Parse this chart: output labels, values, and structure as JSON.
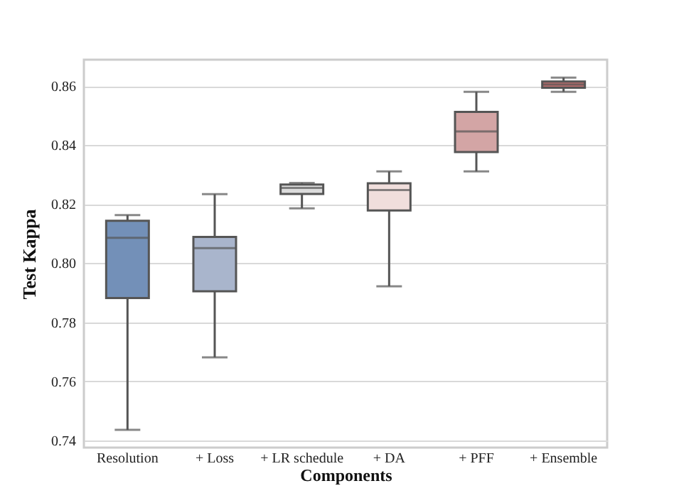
{
  "chart_data": {
    "type": "box",
    "xlabel": "Components",
    "ylabel": "Test Kappa",
    "categories": [
      "Resolution",
      "+ Loss",
      "+ LR schedule",
      "+ DA",
      "+ PFF",
      "+ Ensemble"
    ],
    "colors": [
      "#7390b8",
      "#a9b5cc",
      "#dcdcdc",
      "#f0dedc",
      "#d3a5a5",
      "#c06e6e"
    ],
    "boxes": [
      {
        "low": 0.7435,
        "q1": 0.7882,
        "median": 0.8086,
        "q3": 0.8144,
        "high": 0.8163
      },
      {
        "low": 0.7681,
        "q1": 0.7905,
        "median": 0.8051,
        "q3": 0.8089,
        "high": 0.8234
      },
      {
        "low": 0.8186,
        "q1": 0.8235,
        "median": 0.8255,
        "q3": 0.8267,
        "high": 0.8272
      },
      {
        "low": 0.7922,
        "q1": 0.8179,
        "median": 0.8248,
        "q3": 0.8271,
        "high": 0.8311
      },
      {
        "low": 0.8311,
        "q1": 0.8377,
        "median": 0.8447,
        "q3": 0.8513,
        "high": 0.8581
      },
      {
        "low": 0.8581,
        "q1": 0.8595,
        "median": 0.8606,
        "q3": 0.8616,
        "high": 0.8629
      }
    ],
    "ylim": [
      0.7375,
      0.869
    ],
    "yticks": [
      0.74,
      0.76,
      0.78,
      {
        "value": 0.8,
        "label": "0.80"
      },
      0.82,
      0.84,
      0.86
    ],
    "grid": "y"
  }
}
